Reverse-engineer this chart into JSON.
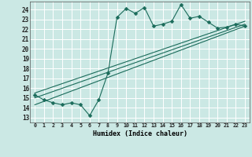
{
  "title": "",
  "xlabel": "Humidex (Indice chaleur)",
  "background_color": "#cbe8e4",
  "grid_color": "#ffffff",
  "line_color": "#1a6b5a",
  "xlim": [
    -0.5,
    23.5
  ],
  "ylim": [
    12.5,
    24.8
  ],
  "yticks": [
    13,
    14,
    15,
    16,
    17,
    18,
    19,
    20,
    21,
    22,
    23,
    24
  ],
  "xticks": [
    0,
    1,
    2,
    3,
    4,
    5,
    6,
    7,
    8,
    9,
    10,
    11,
    12,
    13,
    14,
    15,
    16,
    17,
    18,
    19,
    20,
    21,
    22,
    23
  ],
  "series": [
    {
      "x": [
        0,
        1,
        2,
        3,
        4,
        5,
        6,
        7,
        8,
        9,
        10,
        11,
        12,
        13,
        14,
        15,
        16,
        17,
        18,
        19,
        20,
        21,
        22,
        23
      ],
      "y": [
        15.3,
        14.8,
        14.5,
        14.3,
        14.5,
        14.3,
        13.2,
        14.8,
        17.5,
        23.2,
        24.1,
        23.6,
        24.2,
        22.3,
        22.5,
        22.8,
        24.5,
        23.1,
        23.3,
        22.7,
        22.1,
        22.2,
        22.5,
        22.3
      ],
      "has_marker": true,
      "markersize": 2.5
    },
    {
      "x": [
        0,
        23
      ],
      "y": [
        14.3,
        22.3
      ],
      "has_marker": false
    },
    {
      "x": [
        0,
        23
      ],
      "y": [
        15.0,
        22.5
      ],
      "has_marker": false
    },
    {
      "x": [
        0,
        23
      ],
      "y": [
        15.5,
        22.8
      ],
      "has_marker": false
    }
  ]
}
